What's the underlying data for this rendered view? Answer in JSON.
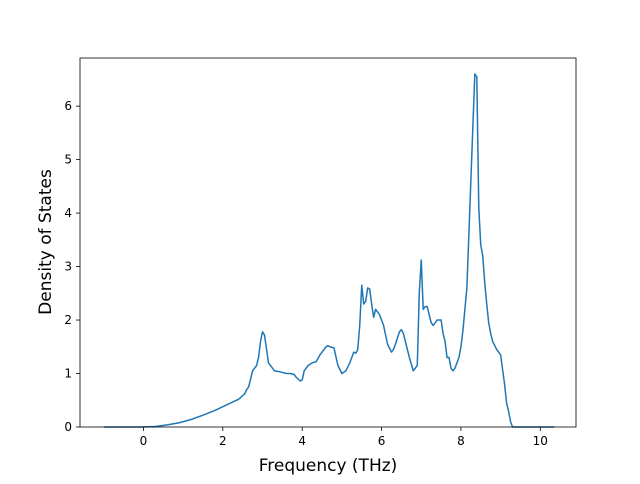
{
  "chart_data": {
    "type": "line",
    "title": "",
    "xlabel": "Frequency (THz)",
    "ylabel": "Density of States",
    "xlim": [
      -1.6,
      10.9
    ],
    "ylim": [
      0,
      6.9
    ],
    "xticks": [
      0,
      2,
      4,
      6,
      8,
      10
    ],
    "yticks": [
      0,
      1,
      2,
      3,
      4,
      5,
      6
    ],
    "grid": false,
    "legend": "none",
    "series": [
      {
        "color": "#1f77b4",
        "x": [
          -1.0,
          0.0,
          0.3,
          0.6,
          0.9,
          1.2,
          1.5,
          1.8,
          2.0,
          2.2,
          2.4,
          2.55,
          2.6,
          2.65,
          2.75,
          2.85,
          2.9,
          2.95,
          3.0,
          3.05,
          3.15,
          3.3,
          3.45,
          3.6,
          3.7,
          3.8,
          3.85,
          3.95,
          4.0,
          4.05,
          4.15,
          4.25,
          4.35,
          4.45,
          4.5,
          4.6,
          4.65,
          4.7,
          4.8,
          4.9,
          5.0,
          5.1,
          5.2,
          5.3,
          5.35,
          5.4,
          5.45,
          5.5,
          5.55,
          5.6,
          5.65,
          5.7,
          5.75,
          5.8,
          5.85,
          5.95,
          6.05,
          6.15,
          6.25,
          6.3,
          6.35,
          6.45,
          6.5,
          6.55,
          6.6,
          6.7,
          6.8,
          6.9,
          6.95,
          7.0,
          7.05,
          7.1,
          7.15,
          7.25,
          7.3,
          7.4,
          7.5,
          7.55,
          7.6,
          7.65,
          7.7,
          7.75,
          7.8,
          7.85,
          7.95,
          8.0,
          8.05,
          8.15,
          8.25,
          8.35,
          8.4,
          8.45,
          8.5,
          8.55,
          8.6,
          8.65,
          8.7,
          8.75,
          8.8,
          8.9,
          9.0,
          9.1,
          9.15,
          9.2,
          9.25,
          9.3,
          9.35,
          9.4,
          9.6,
          10.35
        ],
        "y": [
          0.0,
          0.0,
          0.01,
          0.04,
          0.08,
          0.14,
          0.22,
          0.31,
          0.38,
          0.45,
          0.52,
          0.62,
          0.7,
          0.75,
          1.05,
          1.15,
          1.3,
          1.6,
          1.78,
          1.72,
          1.2,
          1.05,
          1.03,
          1.0,
          1.0,
          0.98,
          0.93,
          0.86,
          0.88,
          1.05,
          1.15,
          1.2,
          1.22,
          1.35,
          1.4,
          1.5,
          1.52,
          1.5,
          1.48,
          1.15,
          1.0,
          1.05,
          1.2,
          1.4,
          1.38,
          1.45,
          1.9,
          2.65,
          2.3,
          2.35,
          2.6,
          2.58,
          2.3,
          2.05,
          2.2,
          2.1,
          1.9,
          1.55,
          1.4,
          1.45,
          1.55,
          1.78,
          1.82,
          1.75,
          1.6,
          1.3,
          1.05,
          1.15,
          2.5,
          3.12,
          2.2,
          2.25,
          2.25,
          1.95,
          1.9,
          2.0,
          2.0,
          1.75,
          1.6,
          1.3,
          1.3,
          1.1,
          1.05,
          1.1,
          1.3,
          1.5,
          1.8,
          2.6,
          4.6,
          6.6,
          6.55,
          4.1,
          3.4,
          3.2,
          2.7,
          2.3,
          1.95,
          1.75,
          1.6,
          1.45,
          1.35,
          0.8,
          0.45,
          0.3,
          0.1,
          0.0,
          0.0,
          0.0,
          0.0,
          0.0
        ]
      }
    ]
  }
}
